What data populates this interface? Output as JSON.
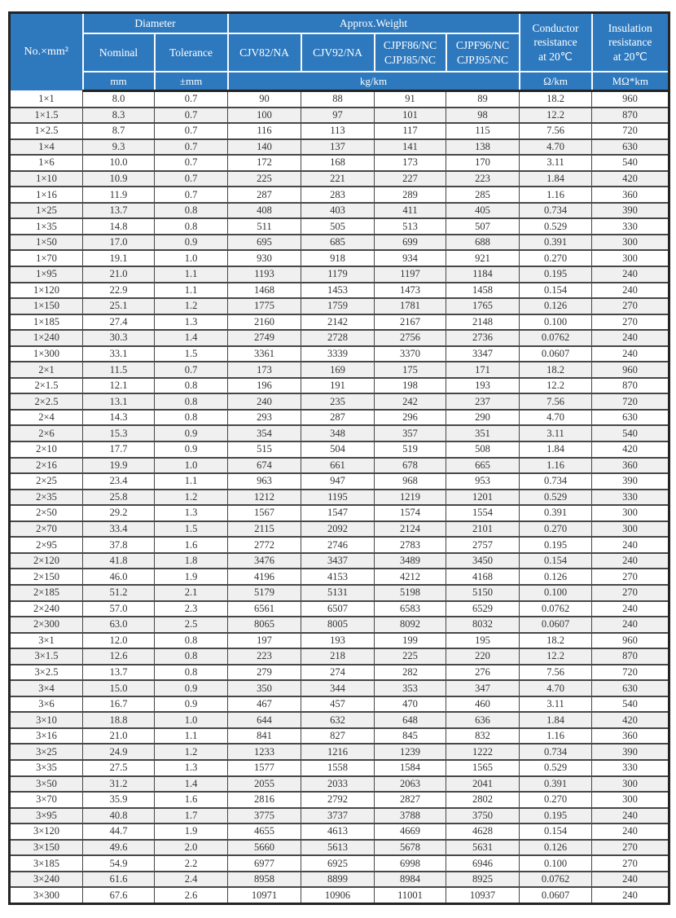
{
  "accent_colors": {
    "header_blue": "#2e79be",
    "header_text": "#ffffff",
    "row_stripe": "#f0f0f0",
    "border_dark": "#242424"
  },
  "table": {
    "header": {
      "no_mm2": "No.×mm²",
      "diameter": "Diameter",
      "approx_weight": "Approx.Weight",
      "nominal": "Nominal",
      "tolerance": "Tolerance",
      "cjv82": "CJV82/NA",
      "cjv92": "CJV92/NA",
      "cjpf86": "CJPF86/NC\nCJPJ85/NC",
      "cjpf96": "CJPF96/NC\nCJPJ95/NC",
      "conductor_resistance": "Conductor\nresistance\nat 20℃",
      "insulation_resistance": "Insulation\nresistance\nat 20℃"
    },
    "units": {
      "mm": "mm",
      "tolerance_mm": "±mm",
      "kg_km": "kg/km",
      "ohm_km": "Ω/km",
      "mohm_km": "MΩ*km"
    },
    "rows": [
      [
        "1×1",
        "8.0",
        "0.7",
        "90",
        "88",
        "91",
        "89",
        "18.2",
        "960"
      ],
      [
        "1×1.5",
        "8.3",
        "0.7",
        "100",
        "97",
        "101",
        "98",
        "12.2",
        "870"
      ],
      [
        "1×2.5",
        "8.7",
        "0.7",
        "116",
        "113",
        "117",
        "115",
        "7.56",
        "720"
      ],
      [
        "1×4",
        "9.3",
        "0.7",
        "140",
        "137",
        "141",
        "138",
        "4.70",
        "630"
      ],
      [
        "1×6",
        "10.0",
        "0.7",
        "172",
        "168",
        "173",
        "170",
        "3.11",
        "540"
      ],
      [
        "1×10",
        "10.9",
        "0.7",
        "225",
        "221",
        "227",
        "223",
        "1.84",
        "420"
      ],
      [
        "1×16",
        "11.9",
        "0.7",
        "287",
        "283",
        "289",
        "285",
        "1.16",
        "360"
      ],
      [
        "1×25",
        "13.7",
        "0.8",
        "408",
        "403",
        "411",
        "405",
        "0.734",
        "390"
      ],
      [
        "1×35",
        "14.8",
        "0.8",
        "511",
        "505",
        "513",
        "507",
        "0.529",
        "330"
      ],
      [
        "1×50",
        "17.0",
        "0.9",
        "695",
        "685",
        "699",
        "688",
        "0.391",
        "300"
      ],
      [
        "1×70",
        "19.1",
        "1.0",
        "930",
        "918",
        "934",
        "921",
        "0.270",
        "300"
      ],
      [
        "1×95",
        "21.0",
        "1.1",
        "1193",
        "1179",
        "1197",
        "1184",
        "0.195",
        "240"
      ],
      [
        "1×120",
        "22.9",
        "1.1",
        "1468",
        "1453",
        "1473",
        "1458",
        "0.154",
        "240"
      ],
      [
        "1×150",
        "25.1",
        "1.2",
        "1775",
        "1759",
        "1781",
        "1765",
        "0.126",
        "270"
      ],
      [
        "1×185",
        "27.4",
        "1.3",
        "2160",
        "2142",
        "2167",
        "2148",
        "0.100",
        "270"
      ],
      [
        "1×240",
        "30.3",
        "1.4",
        "2749",
        "2728",
        "2756",
        "2736",
        "0.0762",
        "240"
      ],
      [
        "1×300",
        "33.1",
        "1.5",
        "3361",
        "3339",
        "3370",
        "3347",
        "0.0607",
        "240"
      ],
      [
        "2×1",
        "11.5",
        "0.7",
        "173",
        "169",
        "175",
        "171",
        "18.2",
        "960"
      ],
      [
        "2×1.5",
        "12.1",
        "0.8",
        "196",
        "191",
        "198",
        "193",
        "12.2",
        "870"
      ],
      [
        "2×2.5",
        "13.1",
        "0.8",
        "240",
        "235",
        "242",
        "237",
        "7.56",
        "720"
      ],
      [
        "2×4",
        "14.3",
        "0.8",
        "293",
        "287",
        "296",
        "290",
        "4.70",
        "630"
      ],
      [
        "2×6",
        "15.3",
        "0.9",
        "354",
        "348",
        "357",
        "351",
        "3.11",
        "540"
      ],
      [
        "2×10",
        "17.7",
        "0.9",
        "515",
        "504",
        "519",
        "508",
        "1.84",
        "420"
      ],
      [
        "2×16",
        "19.9",
        "1.0",
        "674",
        "661",
        "678",
        "665",
        "1.16",
        "360"
      ],
      [
        "2×25",
        "23.4",
        "1.1",
        "963",
        "947",
        "968",
        "953",
        "0.734",
        "390"
      ],
      [
        "2×35",
        "25.8",
        "1.2",
        "1212",
        "1195",
        "1219",
        "1201",
        "0.529",
        "330"
      ],
      [
        "2×50",
        "29.2",
        "1.3",
        "1567",
        "1547",
        "1574",
        "1554",
        "0.391",
        "300"
      ],
      [
        "2×70",
        "33.4",
        "1.5",
        "2115",
        "2092",
        "2124",
        "2101",
        "0.270",
        "300"
      ],
      [
        "2×95",
        "37.8",
        "1.6",
        "2772",
        "2746",
        "2783",
        "2757",
        "0.195",
        "240"
      ],
      [
        "2×120",
        "41.8",
        "1.8",
        "3476",
        "3437",
        "3489",
        "3450",
        "0.154",
        "240"
      ],
      [
        "2×150",
        "46.0",
        "1.9",
        "4196",
        "4153",
        "4212",
        "4168",
        "0.126",
        "270"
      ],
      [
        "2×185",
        "51.2",
        "2.1",
        "5179",
        "5131",
        "5198",
        "5150",
        "0.100",
        "270"
      ],
      [
        "2×240",
        "57.0",
        "2.3",
        "6561",
        "6507",
        "6583",
        "6529",
        "0.0762",
        "240"
      ],
      [
        "2×300",
        "63.0",
        "2.5",
        "8065",
        "8005",
        "8092",
        "8032",
        "0.0607",
        "240"
      ],
      [
        "3×1",
        "12.0",
        "0.8",
        "197",
        "193",
        "199",
        "195",
        "18.2",
        "960"
      ],
      [
        "3×1.5",
        "12.6",
        "0.8",
        "223",
        "218",
        "225",
        "220",
        "12.2",
        "870"
      ],
      [
        "3×2.5",
        "13.7",
        "0.8",
        "279",
        "274",
        "282",
        "276",
        "7.56",
        "720"
      ],
      [
        "3×4",
        "15.0",
        "0.9",
        "350",
        "344",
        "353",
        "347",
        "4.70",
        "630"
      ],
      [
        "3×6",
        "16.7",
        "0.9",
        "467",
        "457",
        "470",
        "460",
        "3.11",
        "540"
      ],
      [
        "3×10",
        "18.8",
        "1.0",
        "644",
        "632",
        "648",
        "636",
        "1.84",
        "420"
      ],
      [
        "3×16",
        "21.0",
        "1.1",
        "841",
        "827",
        "845",
        "832",
        "1.16",
        "360"
      ],
      [
        "3×25",
        "24.9",
        "1.2",
        "1233",
        "1216",
        "1239",
        "1222",
        "0.734",
        "390"
      ],
      [
        "3×35",
        "27.5",
        "1.3",
        "1577",
        "1558",
        "1584",
        "1565",
        "0.529",
        "330"
      ],
      [
        "3×50",
        "31.2",
        "1.4",
        "2055",
        "2033",
        "2063",
        "2041",
        "0.391",
        "300"
      ],
      [
        "3×70",
        "35.9",
        "1.6",
        "2816",
        "2792",
        "2827",
        "2802",
        "0.270",
        "300"
      ],
      [
        "3×95",
        "40.8",
        "1.7",
        "3775",
        "3737",
        "3788",
        "3750",
        "0.195",
        "240"
      ],
      [
        "3×120",
        "44.7",
        "1.9",
        "4655",
        "4613",
        "4669",
        "4628",
        "0.154",
        "240"
      ],
      [
        "3×150",
        "49.6",
        "2.0",
        "5660",
        "5613",
        "5678",
        "5631",
        "0.126",
        "270"
      ],
      [
        "3×185",
        "54.9",
        "2.2",
        "6977",
        "6925",
        "6998",
        "6946",
        "0.100",
        "270"
      ],
      [
        "3×240",
        "61.6",
        "2.4",
        "8958",
        "8899",
        "8984",
        "8925",
        "0.0762",
        "240"
      ],
      [
        "3×300",
        "67.6",
        "2.6",
        "10971",
        "10906",
        "11001",
        "10937",
        "0.0607",
        "240"
      ]
    ]
  }
}
